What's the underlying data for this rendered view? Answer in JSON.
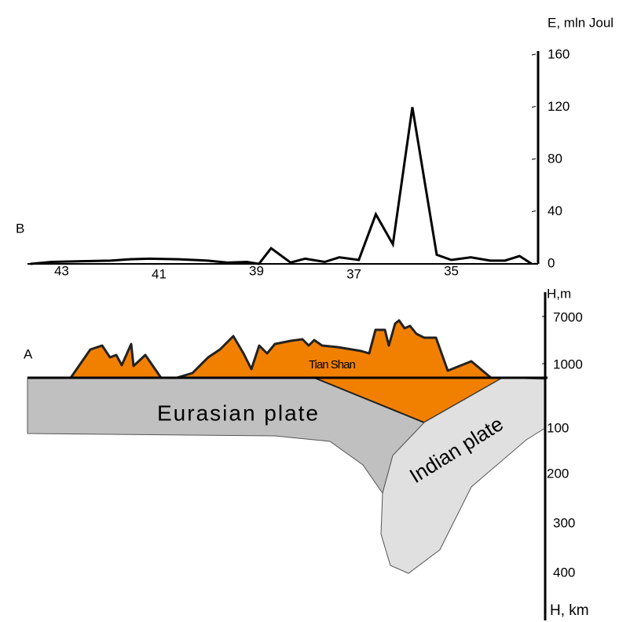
{
  "chart_data": {
    "type": "line",
    "y_axis_label": "E, mln Joul",
    "panel_label": "B",
    "x": [
      43.64,
      43.2,
      42.6,
      42.0,
      41.6,
      41.2,
      40.6,
      40.0,
      39.6,
      39.2,
      38.95,
      38.7,
      38.3,
      38.0,
      37.6,
      37.3,
      36.9,
      36.55,
      36.2,
      35.8,
      35.3,
      35.0,
      34.6,
      34.2,
      33.9,
      33.6,
      33.35
    ],
    "series": [
      {
        "color": "#000000",
        "values": [
          0,
          1.5,
          2,
          2.5,
          3.5,
          4,
          3.5,
          2.5,
          1,
          1.5,
          0,
          12,
          1,
          4,
          1.5,
          5,
          3,
          38,
          15,
          120,
          7,
          3,
          5,
          2.5,
          2.5,
          6,
          0
        ]
      }
    ],
    "xlim": [
      43.7,
      33.3
    ],
    "xticks": [
      43,
      41,
      39,
      37,
      35
    ],
    "ylim": [
      0,
      160
    ],
    "yticks": [
      0,
      40,
      80,
      120,
      160
    ],
    "grid": false
  },
  "section": {
    "panel_label": "A",
    "elevation_label": "H,m",
    "elevation_ticks": [
      "7000",
      "1000"
    ],
    "depth_label": "H, km",
    "depth_ticks": [
      "100",
      "200",
      "300",
      "400"
    ],
    "mountains": "Tian Shan",
    "plate_left": "Eurasian plate",
    "plate_right": "Indian plate"
  }
}
